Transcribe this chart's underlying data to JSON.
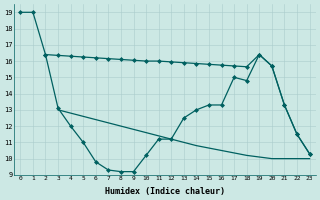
{
  "xlabel": "Humidex (Indice chaleur)",
  "ylabel": "",
  "bg_color": "#cce8e4",
  "line_color": "#006060",
  "xlim": [
    -0.5,
    23.5
  ],
  "ylim": [
    9,
    19.5
  ],
  "yticks": [
    9,
    10,
    11,
    12,
    13,
    14,
    15,
    16,
    17,
    18,
    19
  ],
  "xticks": [
    0,
    1,
    2,
    3,
    4,
    5,
    6,
    7,
    8,
    9,
    10,
    11,
    12,
    13,
    14,
    15,
    16,
    17,
    18,
    19,
    20,
    21,
    22,
    23
  ],
  "line1_x": [
    0,
    1,
    2,
    3,
    4,
    5,
    6,
    7,
    8,
    9,
    10,
    11,
    12,
    13,
    14,
    15,
    16,
    17,
    18,
    19,
    20,
    21,
    22,
    23
  ],
  "line1_y": [
    19,
    19,
    16.4,
    13.1,
    12.0,
    11.0,
    9.8,
    9.3,
    9.2,
    9.2,
    10.2,
    11.2,
    11.2,
    12.5,
    13.0,
    13.3,
    13.3,
    15.0,
    14.8,
    16.4,
    15.7,
    13.3,
    11.5,
    10.3
  ],
  "line2_x": [
    2,
    3,
    4,
    5,
    6,
    7,
    8,
    9,
    10,
    11,
    12,
    13,
    14,
    15,
    16,
    17,
    18,
    19,
    20,
    21,
    22,
    23
  ],
  "line2_y": [
    16.4,
    16.35,
    16.3,
    16.25,
    16.2,
    16.15,
    16.1,
    16.05,
    16.0,
    16.0,
    15.95,
    15.9,
    15.85,
    15.8,
    15.75,
    15.7,
    15.65,
    16.4,
    15.7,
    13.3,
    11.5,
    10.3
  ],
  "line3_x": [
    3,
    4,
    5,
    6,
    7,
    8,
    9,
    10,
    11,
    12,
    13,
    14,
    15,
    16,
    17,
    18,
    19,
    20,
    21,
    22,
    23
  ],
  "line3_y": [
    13.0,
    12.8,
    12.6,
    12.4,
    12.2,
    12.0,
    11.8,
    11.6,
    11.4,
    11.2,
    11.0,
    10.8,
    10.65,
    10.5,
    10.35,
    10.2,
    10.1,
    10.0,
    10.0,
    10.0,
    10.0
  ]
}
